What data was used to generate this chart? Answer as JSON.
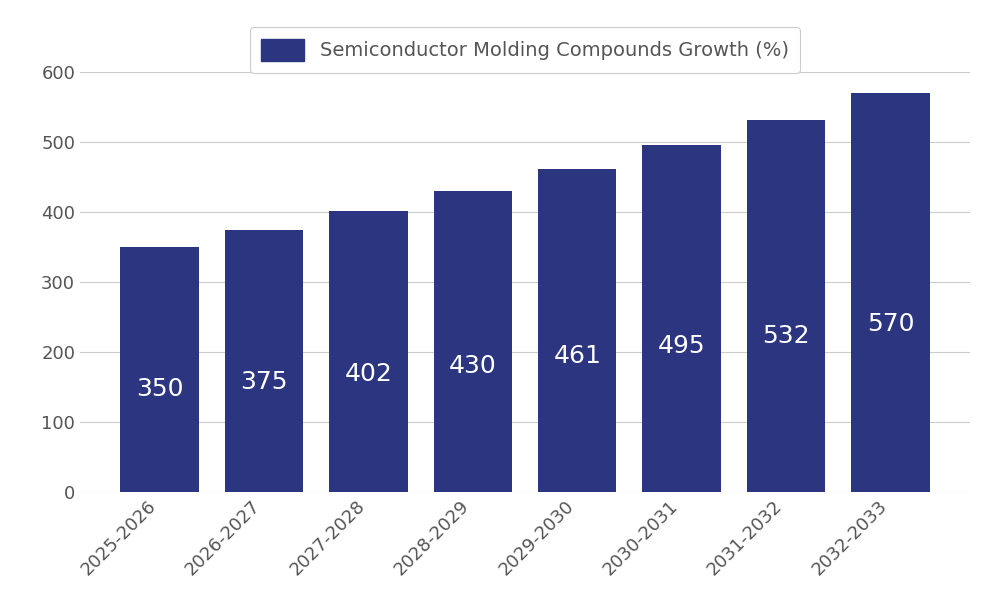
{
  "categories": [
    "2025-2026",
    "2026-2027",
    "2027-2028",
    "2028-2029",
    "2029-2030",
    "2030-2031",
    "2031-2032",
    "2032-2033"
  ],
  "values": [
    350,
    375,
    402,
    430,
    461,
    495,
    532,
    570
  ],
  "bar_color": "#2b3580",
  "legend_label": "Semiconductor Molding Compounds Growth (%)",
  "ylim": [
    0,
    600
  ],
  "yticks": [
    0,
    100,
    200,
    300,
    400,
    500,
    600
  ],
  "label_color": "#ffffff",
  "label_fontsize": 18,
  "tick_fontsize": 13,
  "legend_fontsize": 14,
  "grid_color": "#cccccc",
  "background_color": "#ffffff",
  "bar_width": 0.75
}
